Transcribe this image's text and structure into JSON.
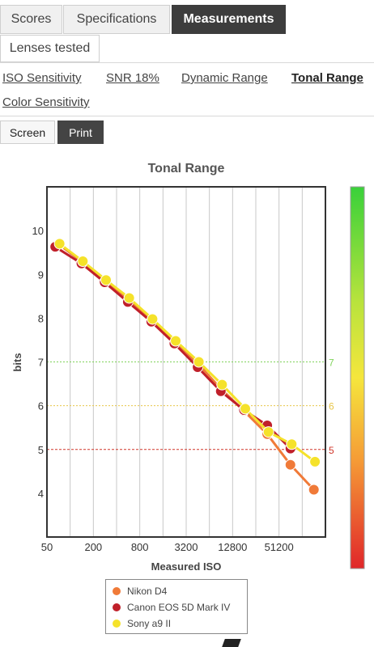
{
  "tabs": {
    "scores": "Scores",
    "specifications": "Specifications",
    "measurements": "Measurements",
    "lenses_tested": "Lenses tested"
  },
  "subnav": {
    "iso_sensitivity": "ISO Sensitivity",
    "snr": "SNR 18%",
    "dynamic_range": "Dynamic Range",
    "tonal_range": "Tonal Range",
    "color_sensitivity": "Color Sensitivity"
  },
  "view": {
    "screen": "Screen",
    "print": "Print"
  },
  "chart_data": {
    "type": "line",
    "title": "Tonal Range",
    "xlabel": "Measured ISO",
    "ylabel": "bits",
    "x_scale": "log2",
    "x_ticks": [
      "50",
      "200",
      "800",
      "3200",
      "12800",
      "51200"
    ],
    "x_tick_values": [
      50,
      200,
      800,
      3200,
      12800,
      51200
    ],
    "xlim": [
      50,
      204800
    ],
    "ylim": [
      3.0,
      11.0
    ],
    "y_ticks": [
      4,
      5,
      6,
      7,
      8,
      9,
      10
    ],
    "reference_lines": [
      {
        "value": 7,
        "label": "7",
        "color": "#7fd35a",
        "style": "dotted"
      },
      {
        "value": 6,
        "label": "6",
        "color": "#e8c64a",
        "style": "dotted"
      },
      {
        "value": 5,
        "label": "5",
        "color": "#d0362a",
        "style": "dashed"
      }
    ],
    "color_scale": [
      "#39d13a",
      "#b8e33c",
      "#f5e63c",
      "#f59a36",
      "#e0262a"
    ],
    "series": [
      {
        "name": "Nikon D4",
        "color": "#f07a38",
        "points": [
          [
            72,
            9.68
          ],
          [
            145,
            9.28
          ],
          [
            290,
            8.85
          ],
          [
            580,
            8.42
          ],
          [
            1150,
            7.95
          ],
          [
            2300,
            7.45
          ],
          [
            4600,
            6.95
          ],
          [
            9100,
            6.38
          ],
          [
            18000,
            5.88
          ],
          [
            36000,
            5.35
          ],
          [
            72000,
            4.65
          ],
          [
            145000,
            4.08
          ]
        ]
      },
      {
        "name": "Canon EOS 5D Mark IV",
        "color": "#c0202a",
        "points": [
          [
            64,
            9.63
          ],
          [
            140,
            9.25
          ],
          [
            280,
            8.82
          ],
          [
            560,
            8.37
          ],
          [
            1130,
            7.92
          ],
          [
            2250,
            7.42
          ],
          [
            4500,
            6.88
          ],
          [
            9000,
            6.33
          ],
          [
            18000,
            5.9
          ],
          [
            36000,
            5.55
          ],
          [
            72000,
            5.02
          ]
        ]
      },
      {
        "name": "Sony a9 II",
        "color": "#f5e22a",
        "points": [
          [
            73,
            9.7
          ],
          [
            146,
            9.3
          ],
          [
            292,
            8.87
          ],
          [
            584,
            8.46
          ],
          [
            1170,
            7.98
          ],
          [
            2340,
            7.48
          ],
          [
            4670,
            7.0
          ],
          [
            9350,
            6.48
          ],
          [
            18700,
            5.93
          ],
          [
            37400,
            5.4
          ],
          [
            74800,
            5.12
          ],
          [
            150000,
            4.72
          ]
        ]
      }
    ]
  }
}
